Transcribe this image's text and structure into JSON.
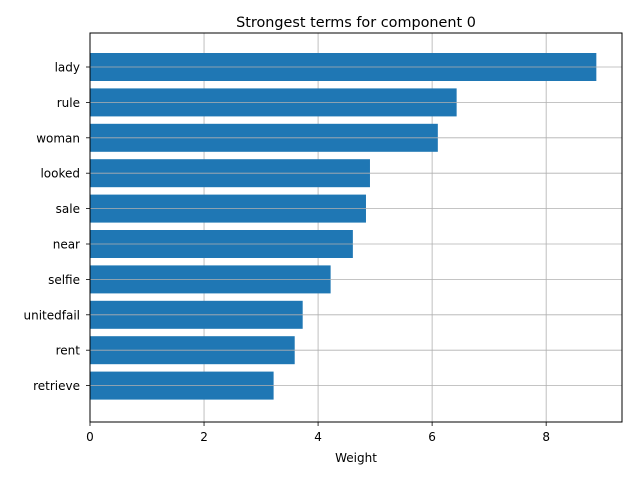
{
  "chart_data": {
    "type": "bar",
    "orientation": "horizontal",
    "title": "Strongest terms for component 0",
    "xlabel": "Weight",
    "ylabel": "",
    "categories": [
      "lady",
      "rule",
      "woman",
      "looked",
      "sale",
      "near",
      "selfie",
      "unitedfail",
      "rent",
      "retrieve"
    ],
    "values": [
      8.88,
      6.43,
      6.1,
      4.91,
      4.84,
      4.61,
      4.22,
      3.73,
      3.59,
      3.22
    ],
    "xlim": [
      0,
      9.33
    ],
    "xticks": [
      0,
      2,
      4,
      6,
      8
    ],
    "grid": true,
    "bar_color": "#1f77b4",
    "grid_color": "#b0b0b0"
  }
}
